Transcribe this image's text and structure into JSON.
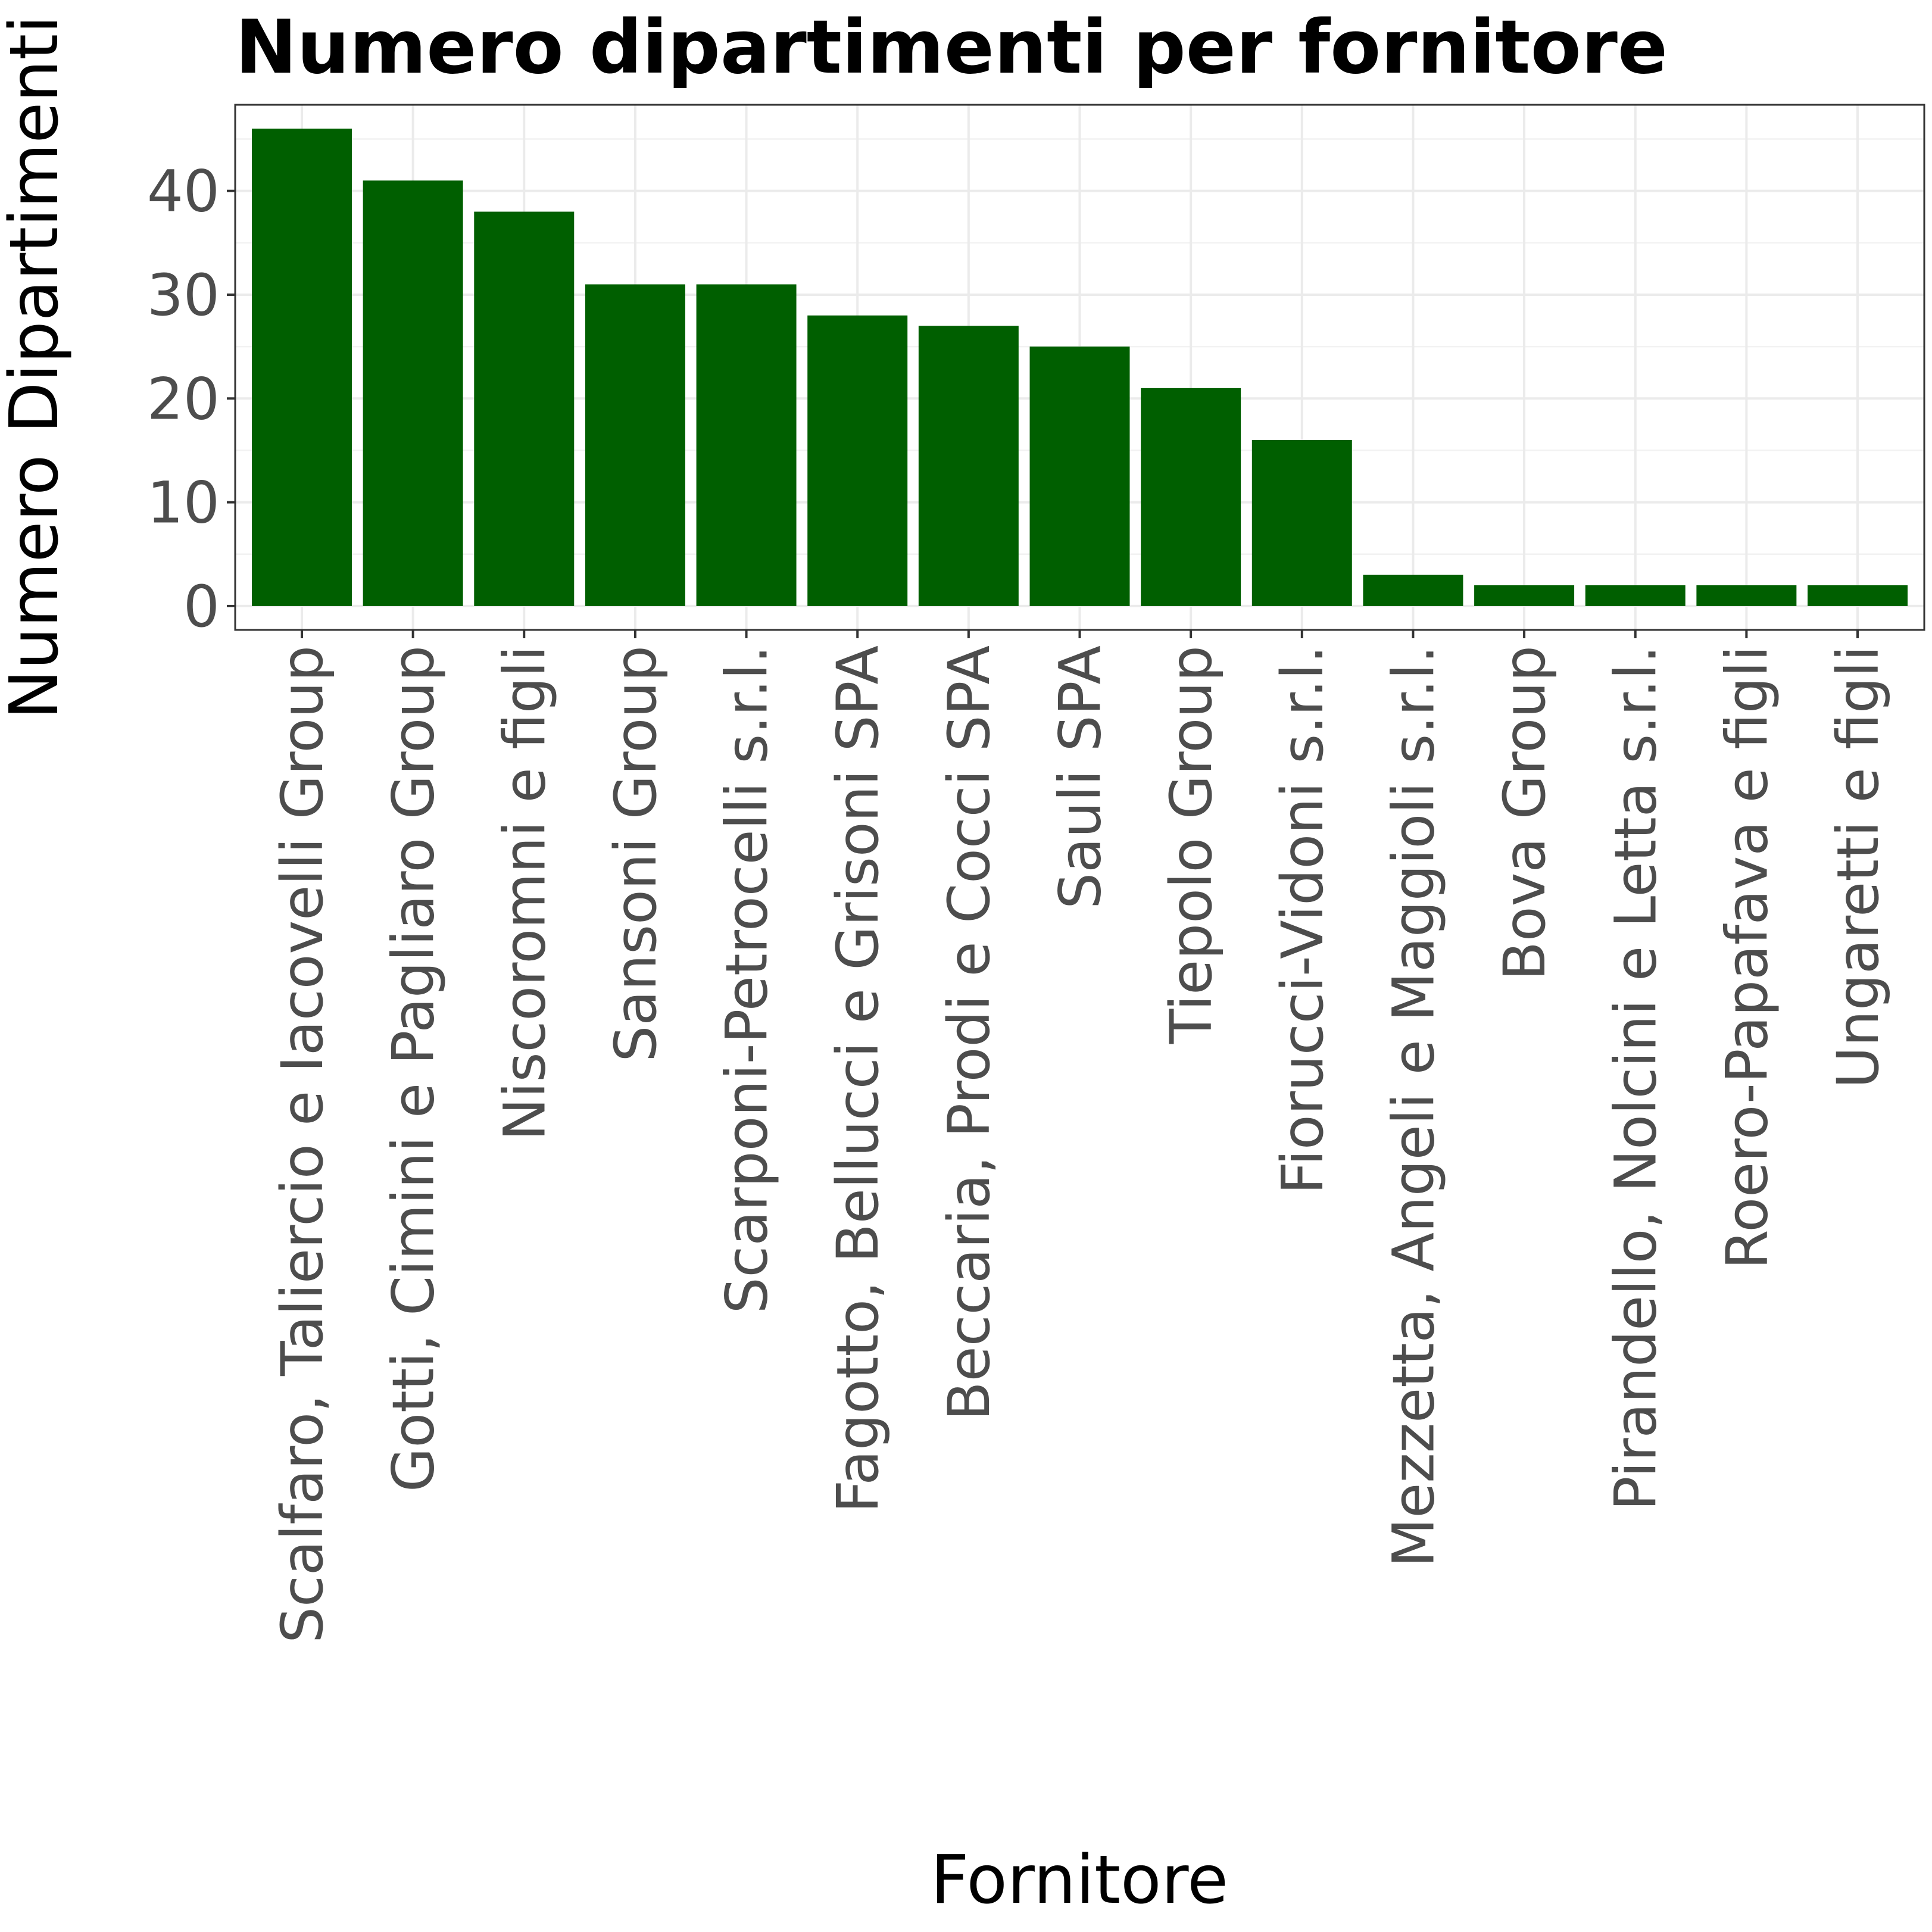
{
  "chart_data": {
    "type": "bar",
    "title": "Numero dipartimenti per fornitore",
    "xlabel": "Fornitore",
    "ylabel": "Numero Dipartimenti",
    "ylim": [
      -2.3,
      48.3
    ],
    "yticks": [
      0,
      10,
      20,
      30,
      40
    ],
    "grid": true,
    "bar_color": "#005f00",
    "categories": [
      "Scalfaro, Taliercio e Iacovelli Group",
      "Gotti, Cimini e Pagliaro Group",
      "Niscoromni e figli",
      "Sansoni Group",
      "Scarponi-Petrocelli s.r.l.",
      "Fagotto, Bellucci e Grisoni SPA",
      "Beccaria, Prodi e Cocci SPA",
      "Sauli SPA",
      "Tiepolo Group",
      "Fiorucci-Vidoni s.r.l.",
      "Mezzetta, Angeli e Maggioli s.r.l.",
      "Bova Group",
      "Pirandello, Nolcini e Letta s.r.l.",
      "Roero-Papafava e figli",
      "Ungaretti e figli"
    ],
    "values": [
      46,
      41,
      38,
      31,
      31,
      28,
      27,
      25,
      21,
      16,
      3,
      2,
      2,
      2,
      2
    ]
  }
}
